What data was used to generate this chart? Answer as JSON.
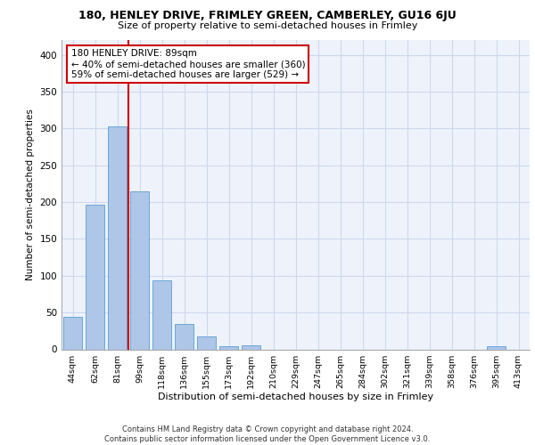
{
  "title1": "180, HENLEY DRIVE, FRIMLEY GREEN, CAMBERLEY, GU16 6JU",
  "title2": "Size of property relative to semi-detached houses in Frimley",
  "xlabel": "Distribution of semi-detached houses by size in Frimley",
  "ylabel": "Number of semi-detached properties",
  "footer": "Contains HM Land Registry data © Crown copyright and database right 2024.\nContains public sector information licensed under the Open Government Licence v3.0.",
  "categories": [
    "44sqm",
    "62sqm",
    "81sqm",
    "99sqm",
    "118sqm",
    "136sqm",
    "155sqm",
    "173sqm",
    "192sqm",
    "210sqm",
    "229sqm",
    "247sqm",
    "265sqm",
    "284sqm",
    "302sqm",
    "321sqm",
    "339sqm",
    "358sqm",
    "376sqm",
    "395sqm",
    "413sqm"
  ],
  "values": [
    44,
    197,
    303,
    215,
    94,
    34,
    17,
    4,
    5,
    0,
    0,
    0,
    0,
    0,
    0,
    0,
    0,
    0,
    0,
    4,
    0
  ],
  "bar_color": "#aec6e8",
  "bar_edge_color": "#5a9fd4",
  "property_label": "180 HENLEY DRIVE: 89sqm",
  "pct_smaller": 40,
  "count_smaller": 360,
  "pct_larger": 59,
  "count_larger": 529,
  "vline_x_index": 2.5,
  "ylim": [
    0,
    420
  ],
  "yticks": [
    0,
    50,
    100,
    150,
    200,
    250,
    300,
    350,
    400
  ],
  "annotation_box_color": "#cc0000",
  "grid_color": "#cdd8ed",
  "bg_color": "#eef2fb"
}
